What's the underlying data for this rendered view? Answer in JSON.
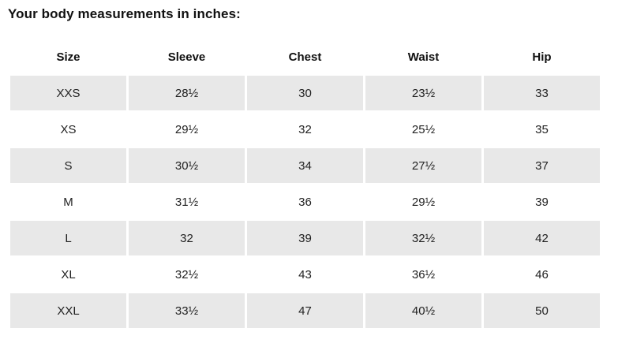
{
  "page": {
    "title": "Your body measurements in inches:"
  },
  "table": {
    "columns": [
      "Size",
      "Sleeve",
      "Chest",
      "Waist",
      "Hip"
    ],
    "rows": [
      {
        "size": "XXS",
        "values": [
          "28½",
          "30",
          "23½",
          "33"
        ],
        "shaded": true
      },
      {
        "size": "XS",
        "values": [
          "29½",
          "32",
          "25½",
          "35"
        ],
        "shaded": false
      },
      {
        "size": "S",
        "values": [
          "30½",
          "34",
          "27½",
          "37"
        ],
        "shaded": true
      },
      {
        "size": "M",
        "values": [
          "31½",
          "36",
          "29½",
          "39"
        ],
        "shaded": false
      },
      {
        "size": "L",
        "values": [
          "32",
          "39",
          "32½",
          "42"
        ],
        "shaded": true
      },
      {
        "size": "XL",
        "values": [
          "32½",
          "43",
          "36½",
          "46"
        ],
        "shaded": false
      },
      {
        "size": "XXL",
        "values": [
          "33½",
          "47",
          "40½",
          "50"
        ],
        "shaded": true
      }
    ]
  },
  "colors": {
    "row_shaded": "#e8e8e8",
    "text": "#191919",
    "background": "#ffffff"
  }
}
